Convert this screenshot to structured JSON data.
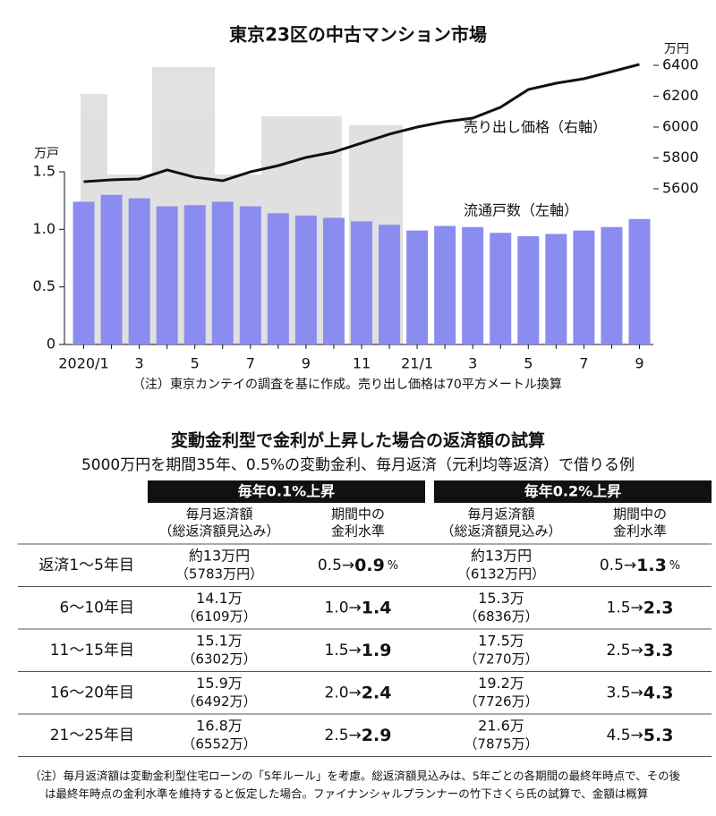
{
  "chart_data": {
    "type": "bar",
    "title": "東京23区の中古マンション市場",
    "categories": [
      "2020/1",
      null,
      "3",
      null,
      "5",
      null,
      "7",
      null,
      "9",
      null,
      "11",
      null,
      "21/1",
      null,
      "3",
      null,
      "5",
      null,
      "7",
      null,
      "9"
    ],
    "series": [
      {
        "name": "流通戸数（左軸）",
        "color": "#8b8cf0",
        "values": [
          1.24,
          1.3,
          1.27,
          1.2,
          1.21,
          1.24,
          1.2,
          1.14,
          1.12,
          1.1,
          1.07,
          1.04,
          0.99,
          1.03,
          1.02,
          0.97,
          0.94,
          0.96,
          0.99,
          1.02,
          1.09
        ]
      },
      {
        "name": "売り出し価格（右軸）",
        "color": "#111111",
        "axis": "y2",
        "values": [
          5646,
          5658,
          5664,
          5722,
          5675,
          5652,
          5710,
          5750,
          5803,
          5838,
          5896,
          5954,
          6000,
          6035,
          6058,
          6128,
          6243,
          6284,
          6313,
          6359,
          6406
        ]
      }
    ],
    "ylabel": "万戸",
    "y2label": "万円",
    "ylim": [
      0,
      1.5
    ],
    "yticks": [
      0,
      0.5,
      {
        "value": 1,
        "label": "1.0"
      },
      1.5
    ],
    "y2lim": [
      5600,
      6400
    ],
    "y2ticks": [
      5600,
      5800,
      6000,
      6200,
      6400
    ],
    "note": "（注）東京カンテイの調査を基に作成。売り出し価格は70平方メートル換算"
  },
  "table": {
    "title": "変動金利型で金利が上昇した場合の返済額の試算",
    "subtitle": "5000万円を期間35年、0.5%の変動金利、毎月返済（元利均等返済）で借りる例",
    "groups": [
      "毎年0.1%上昇",
      "毎年0.2%上昇"
    ],
    "columns": [
      [
        "毎月返済額",
        "（総返済額見込み）"
      ],
      [
        "期間中の",
        "金利水準"
      ],
      [
        "毎月返済額",
        "（総返済額見込み）"
      ],
      [
        "期間中の",
        "金利水準"
      ]
    ],
    "rows": [
      {
        "label": "返済1～5年目",
        "cells": [
          {
            "payment": "約13万円",
            "total": "（5783万円）",
            "from": "0.5→",
            "to": "0.9",
            "unit": "%"
          },
          {
            "payment": "約13万円",
            "total": "（6132万円）",
            "from": "0.5→",
            "to": "1.3",
            "unit": "%"
          }
        ]
      },
      {
        "label": "6～10年目",
        "cells": [
          {
            "payment": "14.1万",
            "total": "（6109万）",
            "from": "1.0→",
            "to": "1.4"
          },
          {
            "payment": "15.3万",
            "total": "（6836万）",
            "from": "1.5→",
            "to": "2.3"
          }
        ]
      },
      {
        "label": "11～15年目",
        "cells": [
          {
            "payment": "15.1万",
            "total": "（6302万）",
            "from": "1.5→",
            "to": "1.9"
          },
          {
            "payment": "17.5万",
            "total": "（7270万）",
            "from": "2.5→",
            "to": "3.3"
          }
        ]
      },
      {
        "label": "16～20年目",
        "cells": [
          {
            "payment": "15.9万",
            "total": "（6492万）",
            "from": "2.0→",
            "to": "2.4"
          },
          {
            "payment": "19.2万",
            "total": "（7726万）",
            "from": "3.5→",
            "to": "4.3"
          }
        ]
      },
      {
        "label": "21～25年目",
        "cells": [
          {
            "payment": "16.8万",
            "total": "（6552万）",
            "from": "2.5→",
            "to": "2.9"
          },
          {
            "payment": "21.6万",
            "total": "（7875万）",
            "from": "4.5→",
            "to": "5.3"
          }
        ]
      }
    ],
    "notes": [
      "（注）毎月返済額は変動金利型住宅ローンの「5年ルール」を考慮。総返済額見込みは、5年ごとの各期間の最終年時点で、その後",
      "は最終年時点の金利水準を維持すると仮定した場合。ファイナンシャルプランナーの竹下さくら氏の試算で、金額は概算"
    ]
  }
}
